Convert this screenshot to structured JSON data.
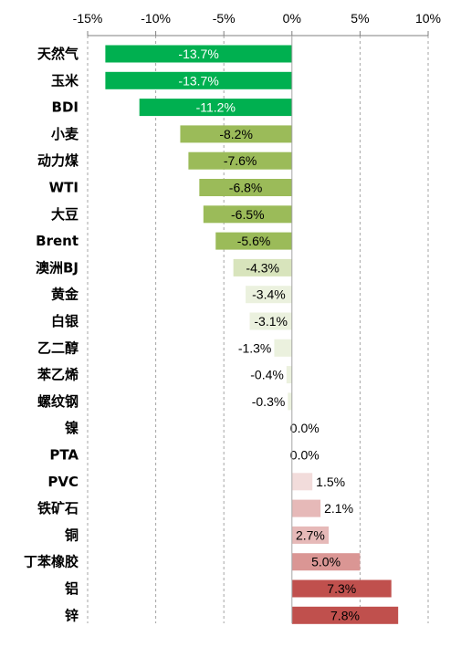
{
  "chart_data": {
    "type": "bar",
    "orientation": "horizontal",
    "title": "",
    "xlabel": "",
    "ylabel": "",
    "xlim": [
      -15,
      10
    ],
    "x_ticks": [
      -15,
      -10,
      -5,
      0,
      5,
      10
    ],
    "x_tick_labels": [
      "-15%",
      "-10%",
      "-5%",
      "0%",
      "5%",
      "10%"
    ],
    "x_axis_position": "top",
    "grid": "vertical dashed",
    "legend": "none",
    "categories": [
      "天然气",
      "玉米",
      "BDI",
      "小麦",
      "动力煤",
      "WTI",
      "大豆",
      "Brent",
      "澳洲BJ",
      "黄金",
      "白银",
      "乙二醇",
      "苯乙烯",
      "螺纹钢",
      "镍",
      "PTA",
      "PVC",
      "铁矿石",
      "铜",
      "丁苯橡胶",
      "铝",
      "锌"
    ],
    "values": [
      -13.7,
      -13.7,
      -11.2,
      -8.2,
      -7.6,
      -6.8,
      -6.5,
      -5.6,
      -4.3,
      -3.4,
      -3.1,
      -1.3,
      -0.4,
      -0.3,
      0.0,
      0.0,
      1.5,
      2.1,
      2.7,
      5.0,
      7.3,
      7.8
    ],
    "data_labels": [
      "-13.7%",
      "-13.7%",
      "-11.2%",
      "-8.2%",
      "-7.6%",
      "-6.8%",
      "-6.5%",
      "-5.6%",
      "-4.3%",
      "-3.4%",
      "-3.1%",
      "-1.3%",
      "-0.4%",
      "-0.3%",
      "0.0%",
      "0.0%",
      "1.5%",
      "2.1%",
      "2.7%",
      "5.0%",
      "7.3%",
      "7.8%"
    ],
    "colors": [
      "#00b050",
      "#00b050",
      "#00b050",
      "#9bbb59",
      "#9bbb59",
      "#9bbb59",
      "#9bbb59",
      "#9bbb59",
      "#d8e4bc",
      "#ebf1de",
      "#ebf1de",
      "#ebf1de",
      "#ebf1de",
      "#ebf1de",
      "#ffffff",
      "#ffffff",
      "#f2dcdb",
      "#e6b9b8",
      "#e6b9b8",
      "#da9694",
      "#c0504d",
      "#c0504d"
    ],
    "label_colors": [
      "#ffffff",
      "#ffffff",
      "#ffffff",
      "#000000",
      "#000000",
      "#000000",
      "#000000",
      "#000000",
      "#000000",
      "#000000",
      "#000000",
      "#000000",
      "#000000",
      "#000000",
      "#000000",
      "#000000",
      "#000000",
      "#000000",
      "#000000",
      "#000000",
      "#000000",
      "#000000"
    ]
  }
}
